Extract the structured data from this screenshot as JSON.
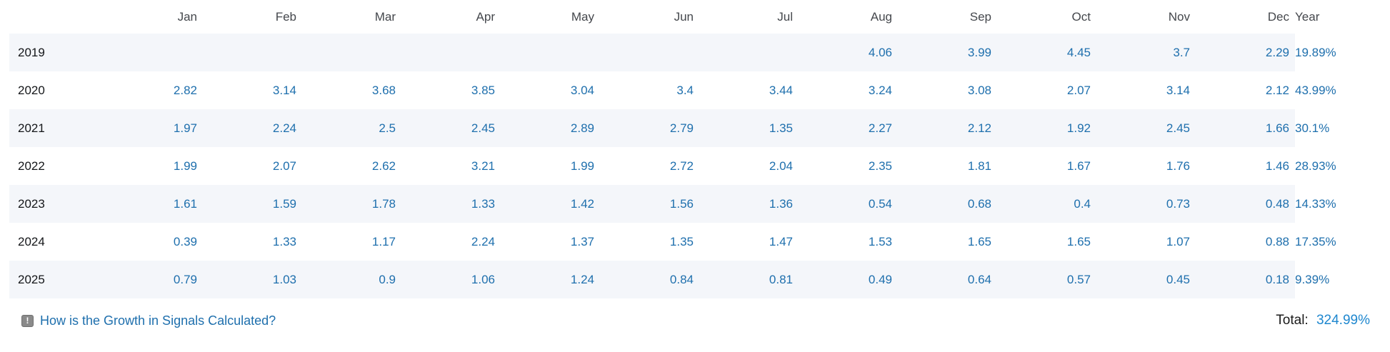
{
  "table": {
    "columns": [
      "Jan",
      "Feb",
      "Mar",
      "Apr",
      "May",
      "Jun",
      "Jul",
      "Aug",
      "Sep",
      "Oct",
      "Nov",
      "Dec",
      "Year"
    ],
    "rows": [
      {
        "year": "2019",
        "months": [
          "",
          "",
          "",
          "",
          "",
          "",
          "",
          "4.06",
          "3.99",
          "4.45",
          "3.7",
          "2.29"
        ],
        "total": "19.89%"
      },
      {
        "year": "2020",
        "months": [
          "2.82",
          "3.14",
          "3.68",
          "3.85",
          "3.04",
          "3.4",
          "3.44",
          "3.24",
          "3.08",
          "2.07",
          "3.14",
          "2.12"
        ],
        "total": "43.99%"
      },
      {
        "year": "2021",
        "months": [
          "1.97",
          "2.24",
          "2.5",
          "2.45",
          "2.89",
          "2.79",
          "1.35",
          "2.27",
          "2.12",
          "1.92",
          "2.45",
          "1.66"
        ],
        "total": "30.1%"
      },
      {
        "year": "2022",
        "months": [
          "1.99",
          "2.07",
          "2.62",
          "3.21",
          "1.99",
          "2.72",
          "2.04",
          "2.35",
          "1.81",
          "1.67",
          "1.76",
          "1.46"
        ],
        "total": "28.93%"
      },
      {
        "year": "2023",
        "months": [
          "1.61",
          "1.59",
          "1.78",
          "1.33",
          "1.42",
          "1.56",
          "1.36",
          "0.54",
          "0.68",
          "0.4",
          "0.73",
          "0.48"
        ],
        "total": "14.33%"
      },
      {
        "year": "2024",
        "months": [
          "0.39",
          "1.33",
          "1.17",
          "2.24",
          "1.37",
          "1.35",
          "1.47",
          "1.53",
          "1.65",
          "1.65",
          "1.07",
          "0.88"
        ],
        "total": "17.35%"
      },
      {
        "year": "2025",
        "months": [
          "0.79",
          "1.03",
          "0.9",
          "1.06",
          "1.24",
          "0.84",
          "0.81",
          "0.49",
          "0.64",
          "0.57",
          "0.45",
          "0.18"
        ],
        "total": "9.39%"
      }
    ]
  },
  "footer": {
    "icon_glyph": "!",
    "link_label": "How is the Growth in Signals Calculated?",
    "total_label": "Total:",
    "total_value": "324.99%"
  },
  "colors": {
    "stripe": "#f4f6fa",
    "cell_link": "#1e6fad",
    "total_value": "#1e87cf",
    "header_text": "#44474c"
  }
}
